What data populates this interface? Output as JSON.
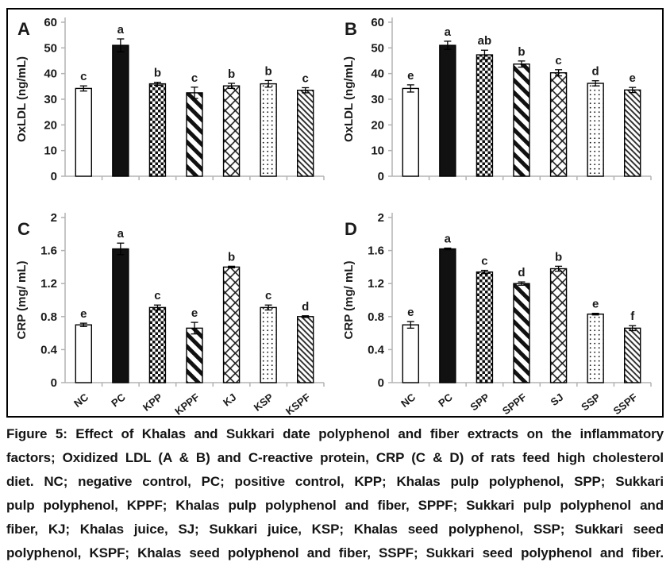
{
  "figure_label": "Figure 5",
  "colors": {
    "axis": "#b3b3b3",
    "bar_dark": "#111111",
    "bar_light": "#ffffff",
    "text": "#1a1a1a"
  },
  "chart_data": [
    {
      "type": "bar",
      "panel_label": "A",
      "ylabel": "OxLDL (ng/mL)",
      "ylim": [
        0,
        60
      ],
      "yticks": [
        "0",
        "10",
        "20",
        "30",
        "40",
        "50",
        "60"
      ],
      "grid": false,
      "legend": "none",
      "show_x_labels": false,
      "categories": [
        "NC",
        "PC",
        "KPP",
        "KPPF",
        "KJ",
        "KSP",
        "KSPF"
      ],
      "values": [
        34.2,
        51,
        36,
        32.5,
        35.2,
        36,
        33.5
      ],
      "errors": [
        1.0,
        2.5,
        0.6,
        2.2,
        1.0,
        1.3,
        1.0
      ],
      "sig_letters": [
        "c",
        "a",
        "b",
        "c",
        "b",
        "b",
        "c"
      ],
      "bar_styles": [
        "plain",
        "solid",
        "checker",
        "diag_wide",
        "crosshatch",
        "dots",
        "diag_fine"
      ]
    },
    {
      "type": "bar",
      "panel_label": "B",
      "ylabel": "OxLDL (ng/mL)",
      "ylim": [
        0,
        60
      ],
      "yticks": [
        "0",
        "10",
        "20",
        "30",
        "40",
        "50",
        "60"
      ],
      "grid": false,
      "legend": "none",
      "show_x_labels": false,
      "categories": [
        "NC",
        "PC",
        "SPP",
        "SPPF",
        "SJ",
        "SSP",
        "SSPF"
      ],
      "values": [
        34.2,
        51,
        47.3,
        43.7,
        40.3,
        36.2,
        33.6
      ],
      "errors": [
        1.4,
        1.6,
        1.8,
        1.2,
        1.2,
        1.0,
        1.0
      ],
      "sig_letters": [
        "e",
        "a",
        "ab",
        "b",
        "c",
        "d",
        "e"
      ],
      "bar_styles": [
        "plain",
        "solid",
        "checker",
        "diag_wide",
        "crosshatch",
        "dots",
        "diag_fine"
      ]
    },
    {
      "type": "bar",
      "panel_label": "C",
      "ylabel": "CRP (mg/ mL)",
      "ylim": [
        0,
        2
      ],
      "yticks": [
        "0",
        "0.4",
        "0.8",
        "1.2",
        "1.6",
        "2"
      ],
      "grid": false,
      "legend": "none",
      "show_x_labels": true,
      "categories": [
        "NC",
        "PC",
        "KPP",
        "KPPF",
        "KJ",
        "KSP",
        "KSPF"
      ],
      "values": [
        0.7,
        1.62,
        0.91,
        0.66,
        1.4,
        0.91,
        0.8
      ],
      "errors": [
        0.02,
        0.07,
        0.03,
        0.07,
        0.01,
        0.03,
        0.01
      ],
      "sig_letters": [
        "e",
        "a",
        "c",
        "e",
        "b",
        "c",
        "d"
      ],
      "bar_styles": [
        "plain",
        "solid",
        "checker",
        "diag_wide",
        "crosshatch",
        "dots",
        "diag_fine"
      ]
    },
    {
      "type": "bar",
      "panel_label": "D",
      "ylabel": "CRP (mg/ mL)",
      "ylim": [
        0,
        2
      ],
      "yticks": [
        "0",
        "0.4",
        "0.8",
        "1.2",
        "1.6",
        "2"
      ],
      "grid": false,
      "legend": "none",
      "show_x_labels": true,
      "categories": [
        "NC",
        "PC",
        "SPP",
        "SPPF",
        "SJ",
        "SSP",
        "SSPF"
      ],
      "values": [
        0.7,
        1.62,
        1.34,
        1.2,
        1.38,
        0.83,
        0.66
      ],
      "errors": [
        0.04,
        0.01,
        0.02,
        0.02,
        0.03,
        0.01,
        0.03
      ],
      "sig_letters": [
        "e",
        "a",
        "c",
        "d",
        "b",
        "e",
        "f"
      ],
      "bar_styles": [
        "plain",
        "solid",
        "checker",
        "diag_wide",
        "crosshatch",
        "dots",
        "diag_fine"
      ]
    }
  ],
  "caption": {
    "lines": [
      "Figure 5: Effect of Khalas and Sukkari date polyphenol and fiber extracts on the inflammatory",
      "factors; Oxidized LDL (A & B) and C-reactive protein, CRP (C & D) of rats feed high cholesterol",
      "diet. NC; negative control, PC; positive control, KPP; Khalas pulp polyphenol, SPP; Sukkari",
      "pulp polyphenol, KPPF; Khalas pulp polyphenol and fiber, SPPF; Sukkari pulp polyphenol and",
      "fiber, KJ; Khalas juice, SJ; Sukkari juice, KSP; Khalas seed polyphenol, SSP; Sukkari seed",
      "polyphenol, KSPF; Khalas seed polyphenol and fiber, SSPF; Sukkari seed polyphenol and fiber."
    ]
  }
}
